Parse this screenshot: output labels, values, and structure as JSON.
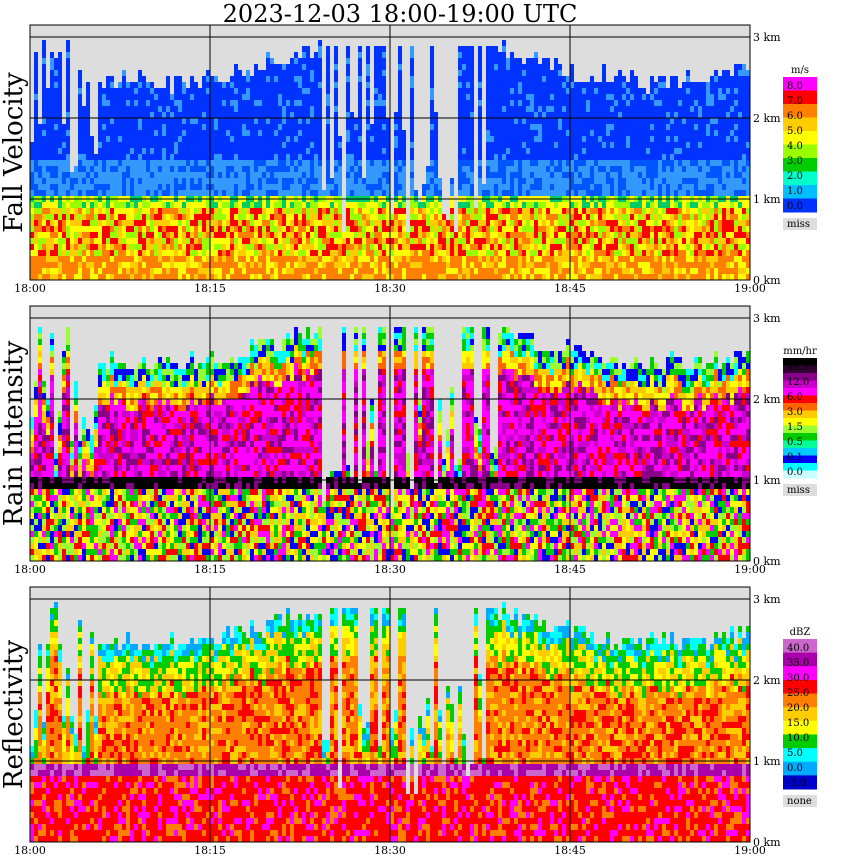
{
  "title": "2023-12-03  18:00-19:00 UTC",
  "chart_data": [
    {
      "type": "heatmap",
      "panel": "Fall Velocity",
      "ylabel": "Fall Velocity",
      "x_ticks": [
        "18:00",
        "18:15",
        "18:30",
        "18:45",
        "19:00"
      ],
      "y_ticks": [
        "0 km",
        "1 km",
        "2 km",
        "3 km"
      ],
      "ylim_km": [
        0,
        3.2
      ],
      "colorbar": {
        "unit": "m/s",
        "labels": [
          "8.0",
          "7.0",
          "6.0",
          "5.0",
          "4.0",
          "3.0",
          "2.0",
          "1.0",
          "0.0"
        ],
        "colors": [
          "#ff00ff",
          "#ff0000",
          "#ff8000",
          "#ffcc00",
          "#ffff00",
          "#99ff00",
          "#00cc00",
          "#00ffcc",
          "#00bfff",
          "#0033ff"
        ],
        "missing_label": "miss",
        "missing_color": "#dddddd"
      }
    },
    {
      "type": "heatmap",
      "panel": "Rain Intensity",
      "ylabel": "Rain Intensity",
      "x_ticks": [
        "18:00",
        "18:15",
        "18:30",
        "18:45",
        "19:00"
      ],
      "y_ticks": [
        "0 km",
        "1 km",
        "2 km",
        "3 km"
      ],
      "ylim_km": [
        0,
        3.2
      ],
      "colorbar": {
        "unit": "mm/hr",
        "labels": [
          "48.0",
          "12.0",
          "6.0",
          "3.0",
          "1.5",
          "0.5",
          "0.1",
          "0.0"
        ],
        "colors": [
          "#000000",
          "#330033",
          "#880088",
          "#cc00cc",
          "#ff00ff",
          "#ff0000",
          "#ff6600",
          "#ffcc00",
          "#ffff00",
          "#99ff33",
          "#00cc00",
          "#00ff99",
          "#00ccff",
          "#0000ff",
          "#00ffff",
          "#ccffff"
        ],
        "missing_label": "miss",
        "missing_color": "#dddddd"
      }
    },
    {
      "type": "heatmap",
      "panel": "Reflectivity",
      "ylabel": "Reflectivity",
      "x_ticks": [
        "18:00",
        "18:15",
        "18:30",
        "18:45",
        "19:00"
      ],
      "y_ticks": [
        "0 km",
        "1 km",
        "2 km",
        "3 km"
      ],
      "ylim_km": [
        0,
        3.2
      ],
      "colorbar": {
        "unit": "dBZ",
        "labels": [
          "40.0",
          "35.0",
          "30.0",
          "25.0",
          "20.0",
          "15.0",
          "10.0",
          "5.0",
          "0.0",
          "-5.0"
        ],
        "colors": [
          "#cc66cc",
          "#aa00aa",
          "#ff00ff",
          "#ff0000",
          "#ff8000",
          "#ffcc00",
          "#ffff00",
          "#00cc00",
          "#00ffff",
          "#00aaff",
          "#0000cc"
        ],
        "missing_label": "none",
        "missing_color": "#dddddd"
      }
    }
  ]
}
